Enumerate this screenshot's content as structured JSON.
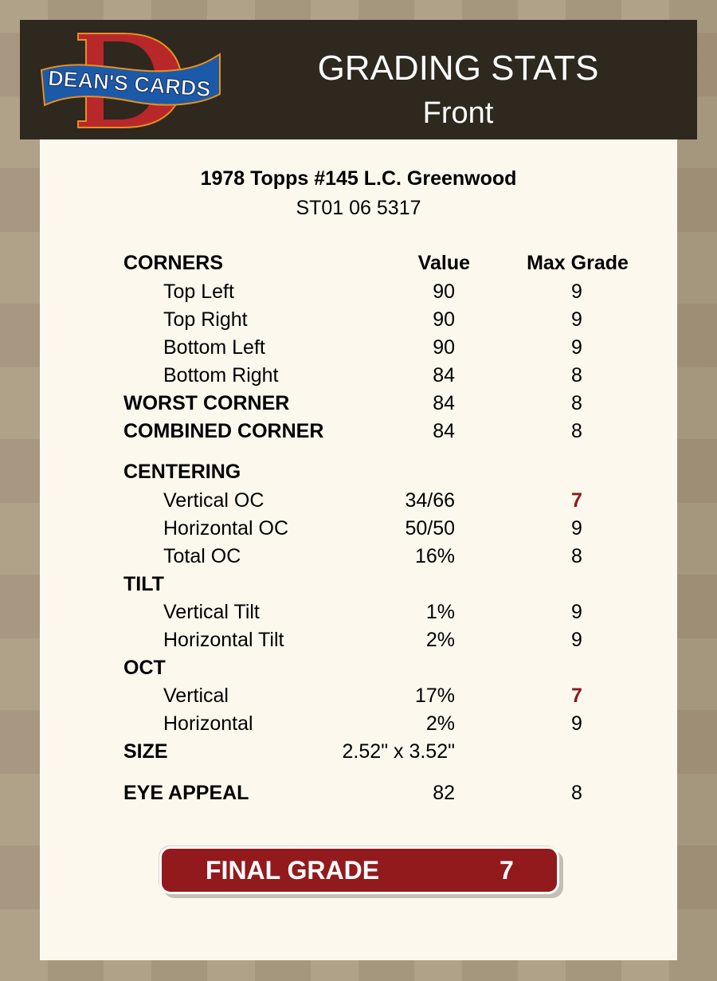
{
  "header": {
    "logo_text": "DEAN'S CARDS",
    "title": "GRADING STATS",
    "subtitle": "Front"
  },
  "card": {
    "name": "1978 Topps #145 L.C. Greenwood",
    "id": "ST01 06 5317"
  },
  "columns": {
    "value": "Value",
    "max_grade": "Max Grade"
  },
  "accent_color": "#921a1d",
  "rows": [
    {
      "label": "CORNERS",
      "type": "section"
    },
    {
      "label": "Top Left",
      "type": "sub",
      "value": "90",
      "max": "9"
    },
    {
      "label": "Top Right",
      "type": "sub",
      "value": "90",
      "max": "9"
    },
    {
      "label": "Bottom Left",
      "type": "sub",
      "value": "90",
      "max": "9"
    },
    {
      "label": "Bottom Right",
      "type": "sub",
      "value": "84",
      "max": "8"
    },
    {
      "label": "WORST CORNER",
      "type": "bold",
      "value": "84",
      "max": "8"
    },
    {
      "label": "COMBINED CORNER",
      "type": "bold",
      "value": "84",
      "max": "8"
    },
    {
      "label": "CENTERING",
      "type": "bold"
    },
    {
      "label": "Vertical OC",
      "type": "sub",
      "value": "34/66",
      "max": "7",
      "highlight": true
    },
    {
      "label": "Horizontal OC",
      "type": "sub",
      "value": "50/50",
      "max": "9"
    },
    {
      "label": "Total OC",
      "type": "sub",
      "value": "16%",
      "max": "8"
    },
    {
      "label": "TILT",
      "type": "bold"
    },
    {
      "label": "Vertical Tilt",
      "type": "sub",
      "value": "1%",
      "max": "9"
    },
    {
      "label": "Horizontal Tilt",
      "type": "sub",
      "value": "2%",
      "max": "9"
    },
    {
      "label": "OCT",
      "type": "bold"
    },
    {
      "label": "Vertical",
      "type": "sub",
      "value": "17%",
      "max": "7",
      "highlight": true
    },
    {
      "label": "Horizontal",
      "type": "sub",
      "value": "2%",
      "max": "9"
    },
    {
      "label": "SIZE",
      "type": "bold",
      "value": "2.52\" x 3.52\""
    },
    {
      "label": "EYE APPEAL",
      "type": "bold",
      "value": "82",
      "max": "8"
    }
  ],
  "final_grade": {
    "label": "FINAL GRADE",
    "value": "7"
  }
}
